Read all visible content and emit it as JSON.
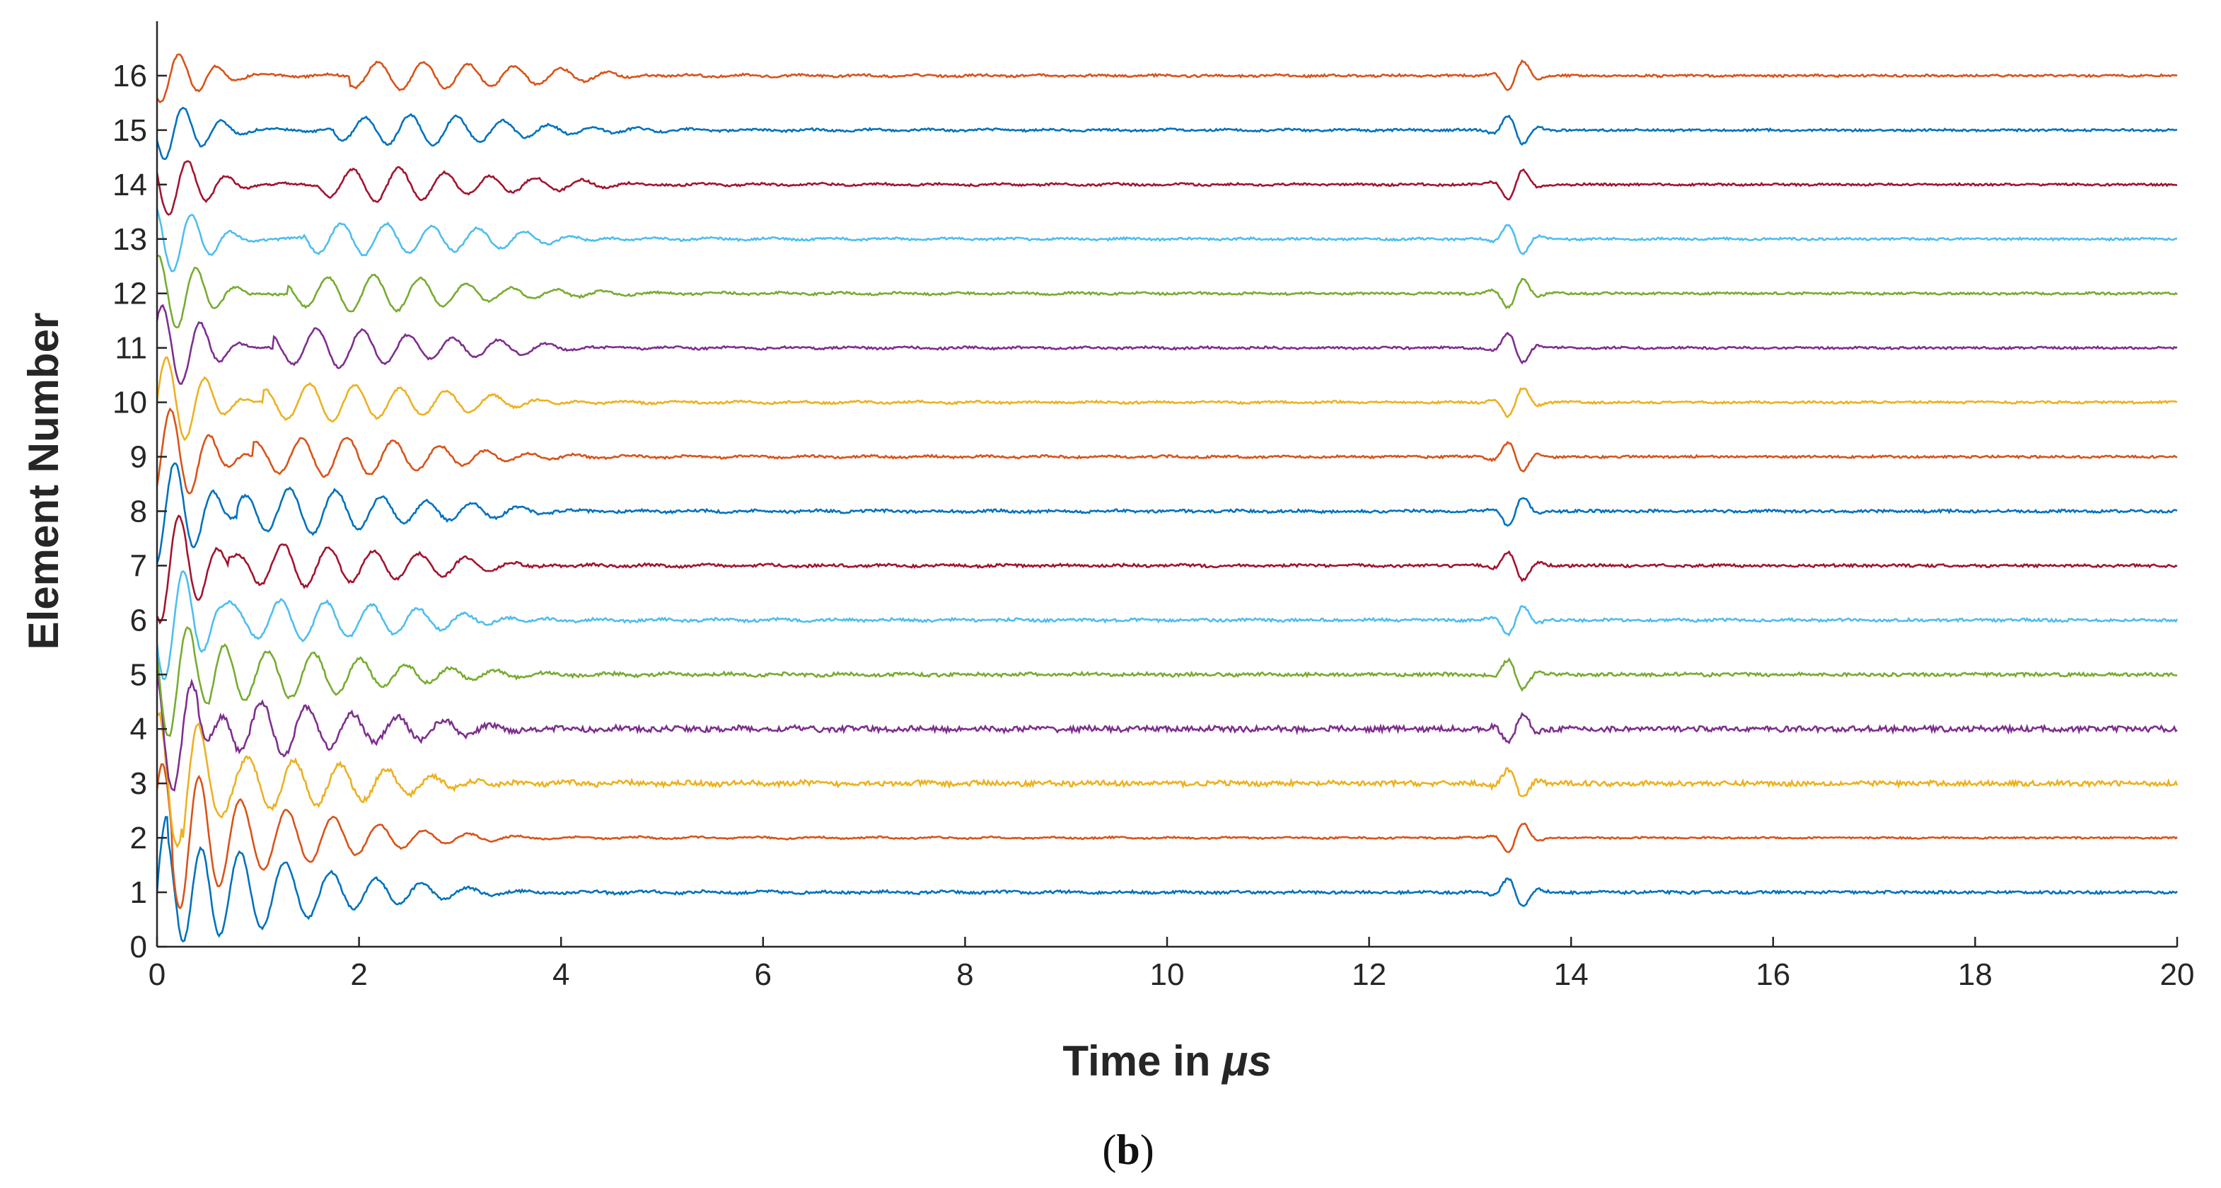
{
  "chart_data": {
    "type": "line",
    "xlabel_prefix": "Time in ",
    "xlabel_unit": "μs",
    "ylabel": "Element Number",
    "panel_label_open": "(",
    "panel_label_letter": "b",
    "panel_label_close": ")",
    "xlim": [
      0,
      20
    ],
    "ylim": [
      0,
      17
    ],
    "xticks": [
      0,
      2,
      4,
      6,
      8,
      10,
      12,
      14,
      16,
      18,
      20
    ],
    "yticks": [
      0,
      1,
      2,
      3,
      4,
      5,
      6,
      7,
      8,
      9,
      10,
      11,
      12,
      13,
      14,
      15,
      16
    ],
    "grid": false,
    "legend": "none",
    "colors": [
      "#0072BD",
      "#D95319",
      "#EDB120",
      "#7E2F8E",
      "#77AC30",
      "#4DBEEE",
      "#A2142F"
    ],
    "echo_time": 13.45,
    "series": [
      {
        "baseline": 1,
        "arrival": 0.7,
        "amplitude": 0.6,
        "noise": 0.05
      },
      {
        "baseline": 2,
        "arrival": 0.75,
        "amplitude": 0.55,
        "noise": 0.03
      },
      {
        "baseline": 3,
        "arrival": 0.85,
        "amplitude": 0.5,
        "noise": 0.09
      },
      {
        "baseline": 4,
        "arrival": 1.0,
        "amplitude": 0.45,
        "noise": 0.1
      },
      {
        "baseline": 5,
        "arrival": 1.1,
        "amplitude": 0.4,
        "noise": 0.06
      },
      {
        "baseline": 6,
        "arrival": 1.25,
        "amplitude": 0.38,
        "noise": 0.05
      },
      {
        "baseline": 7,
        "arrival": 1.3,
        "amplitude": 0.38,
        "noise": 0.05
      },
      {
        "baseline": 8,
        "arrival": 1.4,
        "amplitude": 0.38,
        "noise": 0.05
      },
      {
        "baseline": 9,
        "arrival": 1.55,
        "amplitude": 0.36,
        "noise": 0.04
      },
      {
        "baseline": 10,
        "arrival": 1.65,
        "amplitude": 0.34,
        "noise": 0.04
      },
      {
        "baseline": 11,
        "arrival": 1.75,
        "amplitude": 0.33,
        "noise": 0.04
      },
      {
        "baseline": 12,
        "arrival": 1.9,
        "amplitude": 0.32,
        "noise": 0.04
      },
      {
        "baseline": 13,
        "arrival": 2.05,
        "amplitude": 0.3,
        "noise": 0.04
      },
      {
        "baseline": 14,
        "arrival": 2.2,
        "amplitude": 0.28,
        "noise": 0.04
      },
      {
        "baseline": 15,
        "arrival": 2.35,
        "amplitude": 0.27,
        "noise": 0.04
      },
      {
        "baseline": 16,
        "arrival": 2.5,
        "amplitude": 0.26,
        "noise": 0.04
      }
    ]
  }
}
